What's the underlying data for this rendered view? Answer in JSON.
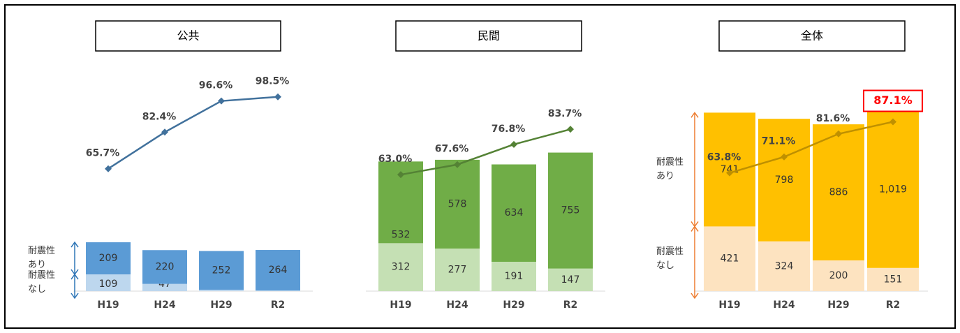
{
  "chart_data": [
    {
      "type": "bar",
      "title": "公共",
      "categories": [
        "H19",
        "H24",
        "H29",
        "R2"
      ],
      "series": [
        {
          "name": "耐震性\nなし",
          "color": "#bdd7ee",
          "values": [
            109,
            47,
            9,
            4
          ]
        },
        {
          "name": "耐震性\nあり",
          "color": "#5b9bd5",
          "values": [
            209,
            220,
            252,
            264
          ]
        },
        {
          "type": "line",
          "color": "#41719c",
          "values": [
            65.7,
            82.4,
            96.6,
            98.5
          ],
          "value_labels": [
            "65.7%",
            "82.4%",
            "96.6%",
            "98.5%"
          ]
        }
      ],
      "arrow_color": "#2e75b6"
    },
    {
      "type": "bar",
      "title": "民間",
      "categories": [
        "H19",
        "H24",
        "H29",
        "R2"
      ],
      "series": [
        {
          "color": "#c5e0b4",
          "values": [
            312,
            277,
            191,
            147
          ]
        },
        {
          "color": "#70ad47",
          "values": [
            532,
            578,
            634,
            755
          ]
        },
        {
          "type": "line",
          "color": "#548235",
          "values": [
            63.0,
            67.6,
            76.8,
            83.7
          ],
          "value_labels": [
            "63.0%",
            "67.6%",
            "76.8%",
            "83.7%"
          ]
        }
      ]
    },
    {
      "type": "bar",
      "title": "全体",
      "categories": [
        "H19",
        "H24",
        "H29",
        "R2"
      ],
      "series": [
        {
          "name": "耐震性\nなし",
          "color": "#fde3c0",
          "values": [
            421,
            324,
            200,
            151
          ]
        },
        {
          "name": "耐震性\nあり",
          "color": "#ffc000",
          "values": [
            741,
            798,
            886,
            1019
          ],
          "value_labels": [
            "741",
            "798",
            "886",
            "1,019"
          ]
        },
        {
          "type": "line",
          "color": "#bf9000",
          "values": [
            63.8,
            71.1,
            81.6,
            87.1
          ],
          "value_labels": [
            "63.8%",
            "71.1%",
            "81.6%",
            "87.1%"
          ],
          "highlight": 3,
          "highlight_color": "#ff0000"
        }
      ],
      "arrow_color": "#ed7d31"
    }
  ]
}
